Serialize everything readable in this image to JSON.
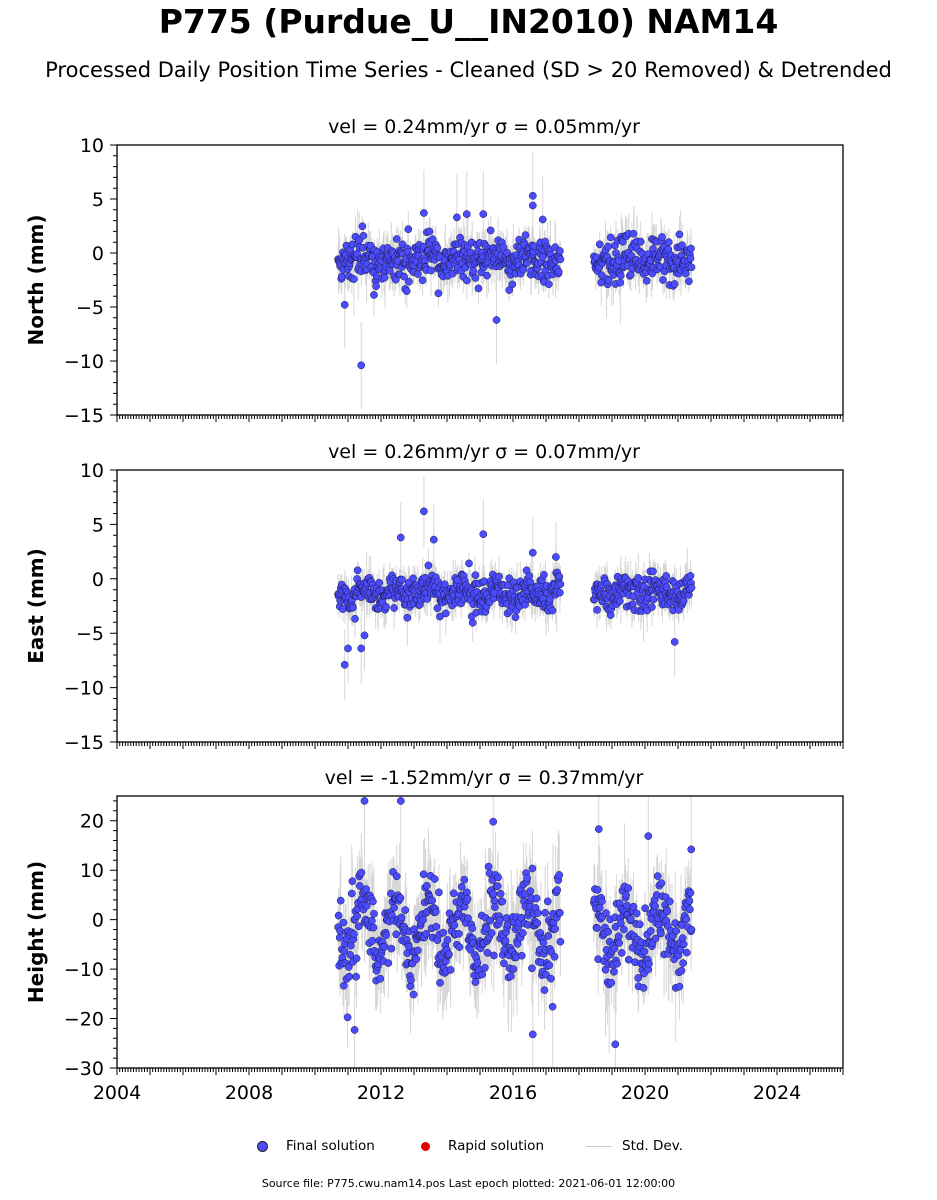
{
  "page": {
    "title": "P775 (Purdue_U__IN2010) NAM14",
    "subtitle": "Processed Daily Position Time Series - Cleaned (SD > 20 Removed) & Detrended"
  },
  "legend": {
    "final_label": "Final solution",
    "rapid_label": "Rapid solution",
    "stddev_label": "Std. Dev.",
    "final_color": "#4b4bff",
    "rapid_color": "#e00000",
    "stddev_color": "#cccccc"
  },
  "footer": {
    "source_text": "Source file: P775.cwu.nam14.pos  Last epoch plotted: 2021-06-01 12:00:00"
  },
  "chart_data": [
    {
      "type": "scatter",
      "panel": "north",
      "title": "vel = 0.24mm/yr   σ = 0.05mm/yr",
      "ylabel": "North (mm)",
      "xlim": [
        2004,
        2026
      ],
      "ylim": [
        -15,
        10
      ],
      "yticks": [
        -15,
        -10,
        -5,
        0,
        5,
        10
      ],
      "ytick_labels": [
        "−15",
        "−10",
        "−5",
        "0",
        "5",
        "10"
      ],
      "xticks": [
        2004,
        2008,
        2012,
        2016,
        2020,
        2024
      ],
      "xtick_labels": [
        "2004",
        "2008",
        "2012",
        "2016",
        "2020",
        "2024"
      ],
      "show_xtick_labels": false,
      "segments": [
        [
          2010.7,
          2017.45
        ],
        [
          2018.45,
          2021.42
        ]
      ],
      "spread": 1.6,
      "offset": -0.6,
      "outliers": [
        [
          2011.4,
          -10.4
        ],
        [
          2010.9,
          -4.8
        ],
        [
          2013.3,
          3.7
        ],
        [
          2015.5,
          -6.2
        ],
        [
          2016.6,
          5.3
        ],
        [
          2016.6,
          4.4
        ],
        [
          2016.9,
          3.1
        ],
        [
          2015.1,
          3.6
        ],
        [
          2014.6,
          3.6
        ],
        [
          2014.3,
          3.3
        ]
      ]
    },
    {
      "type": "scatter",
      "panel": "east",
      "title": "vel = 0.26mm/yr   σ = 0.07mm/yr",
      "ylabel": "East (mm)",
      "xlim": [
        2004,
        2026
      ],
      "ylim": [
        -15,
        10
      ],
      "yticks": [
        -15,
        -10,
        -5,
        0,
        5,
        10
      ],
      "ytick_labels": [
        "−15",
        "−10",
        "−5",
        "0",
        "5",
        "10"
      ],
      "xticks": [
        2004,
        2008,
        2012,
        2016,
        2020,
        2024
      ],
      "xtick_labels": [
        "2004",
        "2008",
        "2012",
        "2016",
        "2020",
        "2024"
      ],
      "show_xtick_labels": false,
      "segments": [
        [
          2010.7,
          2017.45
        ],
        [
          2018.45,
          2021.42
        ]
      ],
      "spread": 1.3,
      "offset": -1.3,
      "outliers": [
        [
          2010.9,
          -7.9
        ],
        [
          2011.0,
          -6.4
        ],
        [
          2011.4,
          -6.4
        ],
        [
          2013.3,
          6.2
        ],
        [
          2013.6,
          3.6
        ],
        [
          2012.6,
          3.8
        ],
        [
          2015.1,
          4.1
        ],
        [
          2016.6,
          2.4
        ],
        [
          2017.3,
          2.0
        ],
        [
          2020.9,
          -5.8
        ],
        [
          2011.5,
          -5.2
        ]
      ]
    },
    {
      "type": "scatter",
      "panel": "height",
      "title": "vel = -1.52mm/yr   σ = 0.37mm/yr",
      "ylabel": "Height (mm)",
      "xlim": [
        2004,
        2026
      ],
      "ylim": [
        -30,
        25
      ],
      "yticks": [
        -30,
        -20,
        -10,
        0,
        10,
        20
      ],
      "ytick_labels": [
        "−30",
        "−20",
        "−10",
        "0",
        "10",
        "20"
      ],
      "xticks": [
        2004,
        2008,
        2012,
        2016,
        2020,
        2024
      ],
      "xtick_labels": [
        "2004",
        "2008",
        "2012",
        "2016",
        "2020",
        "2024"
      ],
      "show_xtick_labels": true,
      "segments": [
        [
          2010.7,
          2017.45
        ],
        [
          2018.45,
          2021.42
        ]
      ],
      "spread": 6.5,
      "offset": -2.0,
      "outliers": [
        [
          2011.5,
          24.0
        ],
        [
          2012.6,
          24.0
        ],
        [
          2015.4,
          19.8
        ],
        [
          2016.6,
          -23.2
        ],
        [
          2018.6,
          18.3
        ],
        [
          2019.1,
          -25.2
        ],
        [
          2020.1,
          16.9
        ],
        [
          2021.4,
          14.2
        ],
        [
          2011.2,
          -22.3
        ],
        [
          2017.2,
          -17.6
        ]
      ]
    }
  ]
}
